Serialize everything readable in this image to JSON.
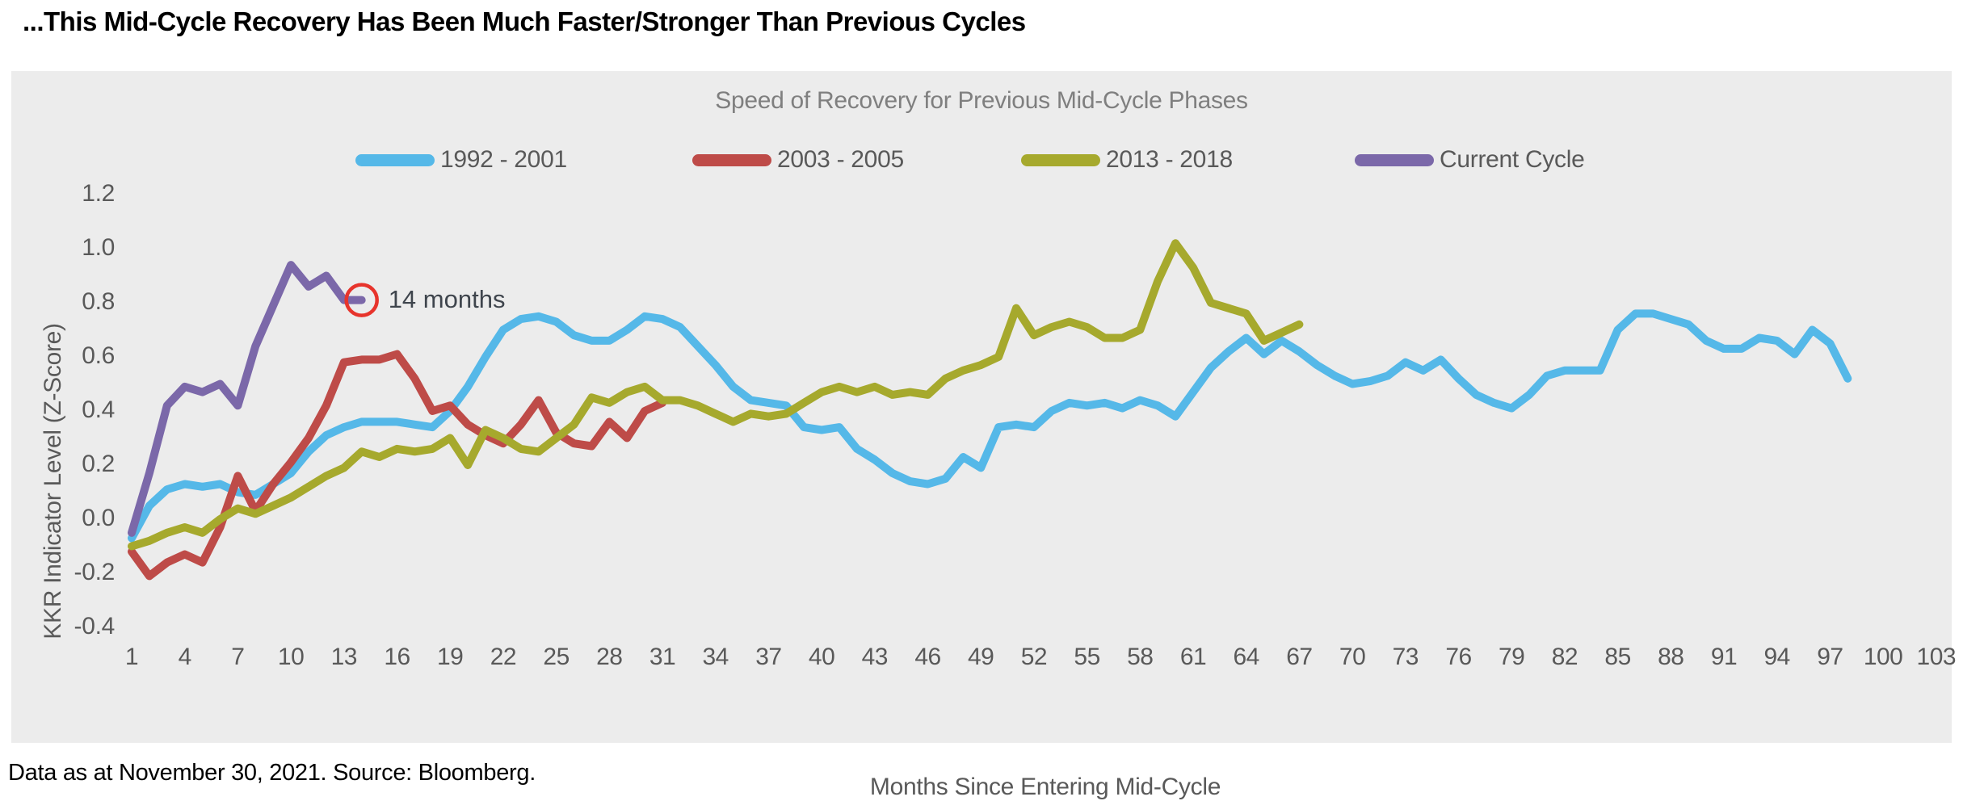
{
  "page": {
    "title": "...This Mid-Cycle Recovery Has Been Much Faster/Stronger Than Previous Cycles",
    "footer": "Data as at November 30, 2021. Source: Bloomberg."
  },
  "chart": {
    "subtitle": "Speed of Recovery for Previous Mid-Cycle Phases",
    "panel_background": "#ECECEC",
    "text_color_axis": "#595959",
    "text_color_subtitle": "#7F7F7F",
    "annotation_circle_color": "#E7342C"
  },
  "chart_data": {
    "type": "line",
    "title": "Speed of Recovery for Previous Mid-Cycle Phases",
    "xlabel": "Months Since Entering Mid-Cycle",
    "ylabel": "KKR Indicator Level (Z-Score)",
    "x_ticks": [
      1,
      4,
      7,
      10,
      13,
      16,
      19,
      22,
      25,
      28,
      31,
      34,
      37,
      40,
      43,
      46,
      49,
      52,
      55,
      58,
      61,
      64,
      67,
      70,
      73,
      76,
      79,
      82,
      85,
      88,
      91,
      94,
      97,
      100,
      103
    ],
    "y_ticks": [
      "1.2",
      "1.0",
      "0.8",
      "0.6",
      "0.4",
      "0.2",
      "0.0",
      "-0.2",
      "-0.4"
    ],
    "ylim": [
      -0.4,
      1.2
    ],
    "xlim": [
      1,
      103
    ],
    "grid": false,
    "legend_position": "top",
    "x_start_month": 1,
    "series": [
      {
        "name": "1992 - 2001",
        "color": "#55B8E8",
        "values": [
          -0.07,
          0.05,
          0.11,
          0.13,
          0.12,
          0.13,
          0.1,
          0.09,
          0.13,
          0.17,
          0.25,
          0.31,
          0.34,
          0.36,
          0.36,
          0.36,
          0.35,
          0.34,
          0.4,
          0.49,
          0.6,
          0.7,
          0.74,
          0.75,
          0.73,
          0.68,
          0.66,
          0.66,
          0.7,
          0.75,
          0.74,
          0.71,
          0.64,
          0.57,
          0.49,
          0.44,
          0.43,
          0.42,
          0.34,
          0.33,
          0.34,
          0.26,
          0.22,
          0.17,
          0.14,
          0.13,
          0.15,
          0.23,
          0.19,
          0.34,
          0.35,
          0.34,
          0.4,
          0.43,
          0.42,
          0.43,
          0.41,
          0.44,
          0.42,
          0.38,
          0.47,
          0.56,
          0.62,
          0.67,
          0.61,
          0.66,
          0.62,
          0.57,
          0.53,
          0.5,
          0.51,
          0.53,
          0.58,
          0.55,
          0.59,
          0.52,
          0.46,
          0.43,
          0.41,
          0.46,
          0.53,
          0.55,
          0.55,
          0.55,
          0.7,
          0.76,
          0.76,
          0.74,
          0.72,
          0.66,
          0.63,
          0.63,
          0.67,
          0.66,
          0.61,
          0.7,
          0.65,
          0.52
        ]
      },
      {
        "name": "2003 - 2005",
        "color": "#BE4B48",
        "values": [
          -0.12,
          -0.21,
          -0.16,
          -0.13,
          -0.16,
          -0.03,
          0.16,
          0.03,
          0.13,
          0.21,
          0.3,
          0.42,
          0.58,
          0.59,
          0.59,
          0.61,
          0.52,
          0.4,
          0.42,
          0.35,
          0.31,
          0.28,
          0.35,
          0.44,
          0.32,
          0.28,
          0.27,
          0.36,
          0.3,
          0.4,
          0.43
        ]
      },
      {
        "name": "2013 - 2018",
        "color": "#A6A92D",
        "values": [
          -0.1,
          -0.08,
          -0.05,
          -0.03,
          -0.05,
          0.0,
          0.04,
          0.02,
          0.05,
          0.08,
          0.12,
          0.16,
          0.19,
          0.25,
          0.23,
          0.26,
          0.25,
          0.26,
          0.3,
          0.2,
          0.33,
          0.3,
          0.26,
          0.25,
          0.3,
          0.35,
          0.45,
          0.43,
          0.47,
          0.49,
          0.44,
          0.44,
          0.42,
          0.39,
          0.36,
          0.39,
          0.38,
          0.39,
          0.43,
          0.47,
          0.49,
          0.47,
          0.49,
          0.46,
          0.47,
          0.46,
          0.52,
          0.55,
          0.57,
          0.6,
          0.78,
          0.68,
          0.71,
          0.73,
          0.71,
          0.67,
          0.67,
          0.7,
          0.88,
          1.02,
          0.93,
          0.8,
          0.78,
          0.76,
          0.66,
          0.69,
          0.72
        ]
      },
      {
        "name": "Current Cycle",
        "color": "#7B68A9",
        "values": [
          -0.05,
          0.17,
          0.42,
          0.49,
          0.47,
          0.5,
          0.42,
          0.64,
          0.79,
          0.94,
          0.86,
          0.9,
          0.81,
          0.81
        ]
      }
    ],
    "annotation": {
      "text": "14 months",
      "series": "Current Cycle",
      "month": 14
    }
  }
}
